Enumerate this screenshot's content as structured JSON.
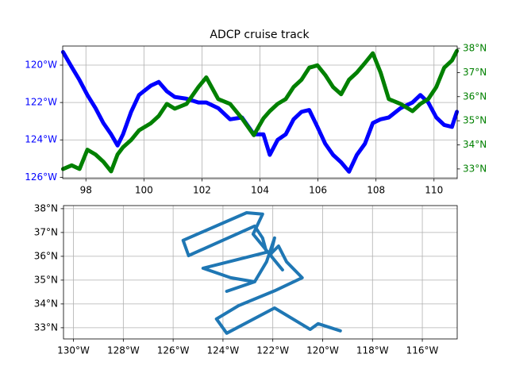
{
  "chart_data": [
    {
      "type": "line",
      "title": "ADCP cruise track",
      "x": [
        97.21,
        97.51,
        97.78,
        98.05,
        98.33,
        98.6,
        98.87,
        99.09,
        99.28,
        99.56,
        99.83,
        100.24,
        100.51,
        100.79,
        101.06,
        101.47,
        101.88,
        102.15,
        102.56,
        102.97,
        103.38,
        103.79,
        104.12,
        104.34,
        104.61,
        104.89,
        105.16,
        105.43,
        105.7,
        105.98,
        106.25,
        106.52,
        106.8,
        107.07,
        107.34,
        107.62,
        107.89,
        108.16,
        108.44,
        108.85,
        109.26,
        109.53,
        109.8,
        110.08,
        110.35,
        110.62,
        110.79
      ],
      "series": [
        {
          "color": "#0000ff",
          "axis": "y",
          "values": [
            -119.3,
            -120.1,
            -120.8,
            -121.6,
            -122.3,
            -123.1,
            -123.7,
            -124.3,
            -123.7,
            -122.5,
            -121.6,
            -121.1,
            -120.9,
            -121.4,
            -121.7,
            -121.8,
            -122.0,
            -122.0,
            -122.3,
            -122.9,
            -122.8,
            -123.7,
            -123.7,
            -124.8,
            -124.0,
            -123.7,
            -122.9,
            -122.5,
            -122.4,
            -123.3,
            -124.2,
            -124.8,
            -125.2,
            -125.7,
            -124.8,
            -124.2,
            -123.1,
            -122.9,
            -122.8,
            -122.3,
            -122.0,
            -121.6,
            -122.0,
            -122.8,
            -123.2,
            -123.3,
            -122.5
          ]
        },
        {
          "color": "#008000",
          "axis": "y2",
          "values": [
            33.0,
            33.15,
            33.0,
            33.8,
            33.6,
            33.3,
            32.9,
            33.6,
            33.9,
            34.2,
            34.6,
            34.9,
            35.2,
            35.7,
            35.5,
            35.7,
            36.4,
            36.8,
            35.9,
            35.7,
            35.1,
            34.4,
            35.1,
            35.4,
            35.7,
            35.9,
            36.4,
            36.7,
            37.2,
            37.3,
            36.9,
            36.4,
            36.1,
            36.7,
            37.0,
            37.4,
            37.8,
            37.0,
            35.9,
            35.7,
            35.4,
            35.7,
            35.9,
            36.4,
            37.2,
            37.5,
            37.9
          ]
        }
      ],
      "xlim": [
        97.2,
        110.8
      ],
      "xticks": [
        98,
        100,
        102,
        104,
        106,
        108,
        110
      ],
      "ylim": [
        -126.07,
        -118.98
      ],
      "yticks": [
        {
          "value": -120,
          "label": "120°W"
        },
        {
          "value": -122,
          "label": "122°W"
        },
        {
          "value": -124,
          "label": "124°W"
        },
        {
          "value": -126,
          "label": "126°W"
        }
      ],
      "y2lim": [
        32.6,
        38.1
      ],
      "y2ticks": [
        {
          "value": 33,
          "label": "33°N"
        },
        {
          "value": 34,
          "label": "34°N"
        },
        {
          "value": 35,
          "label": "35°N"
        },
        {
          "value": 36,
          "label": "36°N"
        },
        {
          "value": 37,
          "label": "37°N"
        },
        {
          "value": 38,
          "label": "38°N"
        }
      ],
      "grid": true
    },
    {
      "type": "line",
      "color": "#1f77b4",
      "x": [
        -119.29,
        -120.18,
        -120.5,
        -121.93,
        -123.85,
        -124.26,
        -123.37,
        -121.93,
        -120.82,
        -121.45,
        -121.77,
        -122.09,
        -121.93,
        -122.25,
        -122.73,
        -123.85,
        -122.73,
        -123.69,
        -124.8,
        -122.25,
        -122.41,
        -122.73,
        -125.38,
        -125.6,
        -123.05,
        -122.41,
        -122.79,
        -121.61
      ],
      "values": [
        32.87,
        33.17,
        32.93,
        33.83,
        32.77,
        33.37,
        33.93,
        34.55,
        35.1,
        35.77,
        36.43,
        36.1,
        36.77,
        35.77,
        34.93,
        34.53,
        34.93,
        35.1,
        35.5,
        36.17,
        36.77,
        37.27,
        36.03,
        36.67,
        37.83,
        37.77,
        36.93,
        35.43
      ],
      "xlim": [
        -130.4,
        -114.6
      ],
      "xticks": [
        {
          "value": -130,
          "label": "130°W"
        },
        {
          "value": -128,
          "label": "128°W"
        },
        {
          "value": -126,
          "label": "126°W"
        },
        {
          "value": -124,
          "label": "124°W"
        },
        {
          "value": -122,
          "label": "122°W"
        },
        {
          "value": -120,
          "label": "120°W"
        },
        {
          "value": -118,
          "label": "118°W"
        },
        {
          "value": -116,
          "label": "116°W"
        }
      ],
      "ylim": [
        32.53,
        38.13
      ],
      "yticks": [
        {
          "value": 33,
          "label": "33°N"
        },
        {
          "value": 34,
          "label": "34°N"
        },
        {
          "value": 35,
          "label": "35°N"
        },
        {
          "value": 36,
          "label": "36°N"
        },
        {
          "value": 37,
          "label": "37°N"
        },
        {
          "value": 38,
          "label": "38°N"
        }
      ],
      "grid": true
    }
  ]
}
